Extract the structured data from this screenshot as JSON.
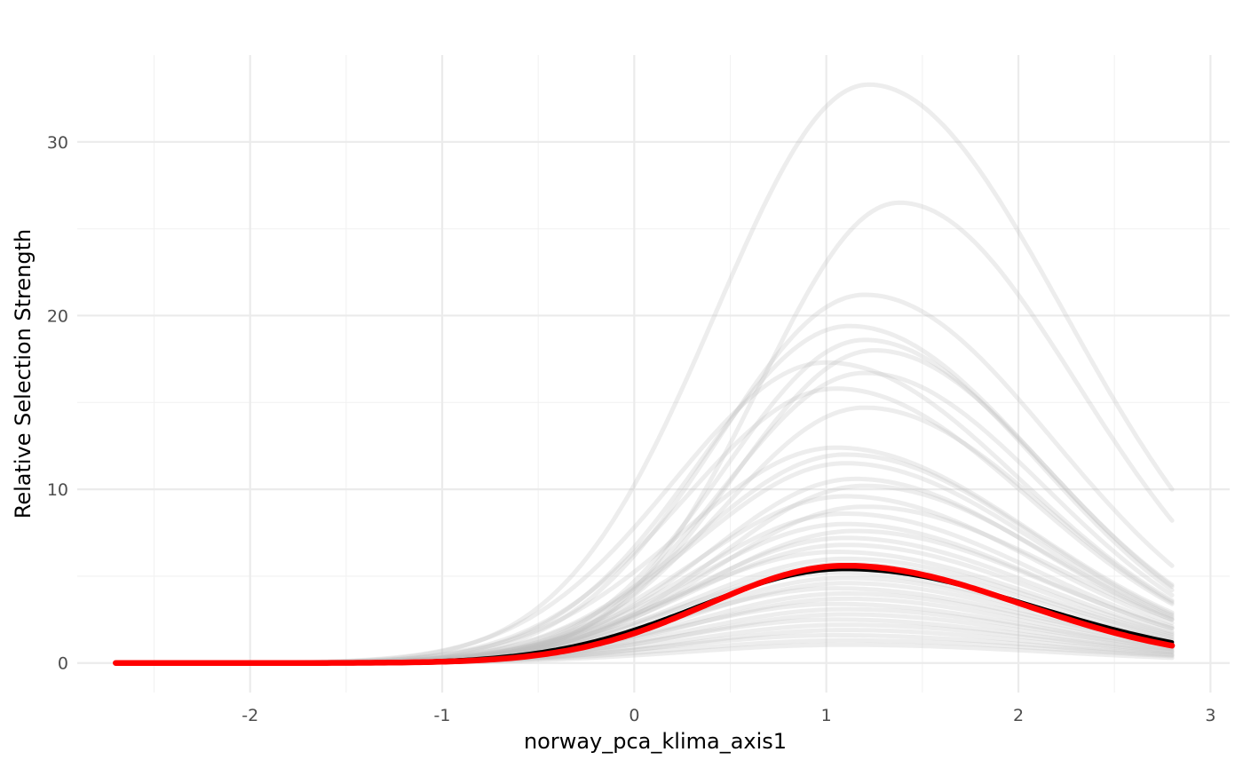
{
  "chart_data": {
    "type": "line",
    "title": "",
    "xlabel": "norway_pca_klima_axis1",
    "ylabel": "Relative Selection Strength",
    "xlim": [
      -2.9,
      3.1
    ],
    "ylim": [
      -1.7,
      35
    ],
    "x_ticks": [
      -2,
      -1,
      0,
      1,
      2,
      3
    ],
    "x_tick_labels": [
      "-2",
      "-1",
      "0",
      "1",
      "2",
      "3"
    ],
    "y_ticks": [
      0,
      10,
      20,
      30
    ],
    "y_tick_labels": [
      "0",
      "10",
      "20",
      "30"
    ],
    "grid": true,
    "legend": "none",
    "colors": {
      "replicates": "#bebebe",
      "mean": "#000000",
      "highlight": "#ff0000"
    },
    "x_range": [
      -2.7,
      2.8
    ],
    "series": [
      {
        "role": "mean",
        "peak_x": 1.1,
        "peak_y": 5.4,
        "end_y": 1.2
      },
      {
        "role": "highlight",
        "peak_x": 1.1,
        "peak_y": 5.6,
        "end_y": 1.0
      },
      {
        "role": "replicate",
        "peak_x": 1.22,
        "peak_y": 33.3,
        "end_y": 10.0
      },
      {
        "role": "replicate",
        "peak_x": 1.38,
        "peak_y": 26.5,
        "end_y": 8.2
      },
      {
        "role": "replicate",
        "peak_x": 1.2,
        "peak_y": 21.2,
        "end_y": 5.6
      },
      {
        "role": "replicate",
        "peak_x": 1.12,
        "peak_y": 19.4,
        "end_y": 4.5
      },
      {
        "role": "replicate",
        "peak_x": 1.2,
        "peak_y": 18.6,
        "end_y": 4.2
      },
      {
        "role": "replicate",
        "peak_x": 1.25,
        "peak_y": 18.0,
        "end_y": 4.4
      },
      {
        "role": "replicate",
        "peak_x": 1.0,
        "peak_y": 17.3,
        "end_y": 3.6
      },
      {
        "role": "replicate",
        "peak_x": 1.2,
        "peak_y": 16.7,
        "end_y": 3.9
      },
      {
        "role": "replicate",
        "peak_x": 1.05,
        "peak_y": 15.8,
        "end_y": 3.4
      },
      {
        "role": "replicate",
        "peak_x": 1.2,
        "peak_y": 14.7,
        "end_y": 3.5
      },
      {
        "role": "replicate",
        "peak_x": 1.05,
        "peak_y": 12.4,
        "end_y": 2.9
      },
      {
        "role": "replicate",
        "peak_x": 1.1,
        "peak_y": 12.0,
        "end_y": 2.8
      },
      {
        "role": "replicate",
        "peak_x": 1.1,
        "peak_y": 11.5,
        "end_y": 2.7
      },
      {
        "role": "replicate",
        "peak_x": 1.15,
        "peak_y": 10.6,
        "end_y": 2.5
      },
      {
        "role": "replicate",
        "peak_x": 1.2,
        "peak_y": 10.2,
        "end_y": 2.6
      },
      {
        "role": "replicate",
        "peak_x": 1.1,
        "peak_y": 9.6,
        "end_y": 2.3
      },
      {
        "role": "replicate",
        "peak_x": 1.2,
        "peak_y": 9.0,
        "end_y": 2.5
      },
      {
        "role": "replicate",
        "peak_x": 1.1,
        "peak_y": 8.6,
        "end_y": 2.1
      },
      {
        "role": "replicate",
        "peak_x": 1.1,
        "peak_y": 8.0,
        "end_y": 2.0
      },
      {
        "role": "replicate",
        "peak_x": 1.15,
        "peak_y": 7.6,
        "end_y": 2.0
      },
      {
        "role": "replicate",
        "peak_x": 1.1,
        "peak_y": 7.2,
        "end_y": 1.8
      },
      {
        "role": "replicate",
        "peak_x": 1.1,
        "peak_y": 6.8,
        "end_y": 1.7
      },
      {
        "role": "replicate",
        "peak_x": 1.05,
        "peak_y": 6.4,
        "end_y": 1.6
      },
      {
        "role": "replicate",
        "peak_x": 1.1,
        "peak_y": 6.0,
        "end_y": 1.5
      },
      {
        "role": "replicate",
        "peak_x": 1.1,
        "peak_y": 5.7,
        "end_y": 1.4
      },
      {
        "role": "replicate",
        "peak_x": 1.05,
        "peak_y": 5.2,
        "end_y": 1.3
      },
      {
        "role": "replicate",
        "peak_x": 1.1,
        "peak_y": 4.9,
        "end_y": 1.2
      },
      {
        "role": "replicate",
        "peak_x": 1.1,
        "peak_y": 4.6,
        "end_y": 1.1
      },
      {
        "role": "replicate",
        "peak_x": 1.05,
        "peak_y": 4.3,
        "end_y": 1.1
      },
      {
        "role": "replicate",
        "peak_x": 1.1,
        "peak_y": 4.0,
        "end_y": 1.0
      },
      {
        "role": "replicate",
        "peak_x": 1.1,
        "peak_y": 3.7,
        "end_y": 0.9
      },
      {
        "role": "replicate",
        "peak_x": 1.05,
        "peak_y": 3.4,
        "end_y": 0.85
      },
      {
        "role": "replicate",
        "peak_x": 1.1,
        "peak_y": 3.1,
        "end_y": 0.8
      },
      {
        "role": "replicate",
        "peak_x": 1.1,
        "peak_y": 2.8,
        "end_y": 0.7
      },
      {
        "role": "replicate",
        "peak_x": 1.05,
        "peak_y": 2.5,
        "end_y": 0.65
      },
      {
        "role": "replicate",
        "peak_x": 1.1,
        "peak_y": 2.2,
        "end_y": 0.6
      },
      {
        "role": "replicate",
        "peak_x": 1.1,
        "peak_y": 1.9,
        "end_y": 0.5
      },
      {
        "role": "replicate",
        "peak_x": 1.05,
        "peak_y": 1.6,
        "end_y": 0.45
      },
      {
        "role": "replicate",
        "peak_x": 1.1,
        "peak_y": 1.3,
        "end_y": 0.4
      },
      {
        "role": "replicate",
        "peak_x": 1.1,
        "peak_y": 1.05,
        "end_y": 0.3
      }
    ]
  }
}
